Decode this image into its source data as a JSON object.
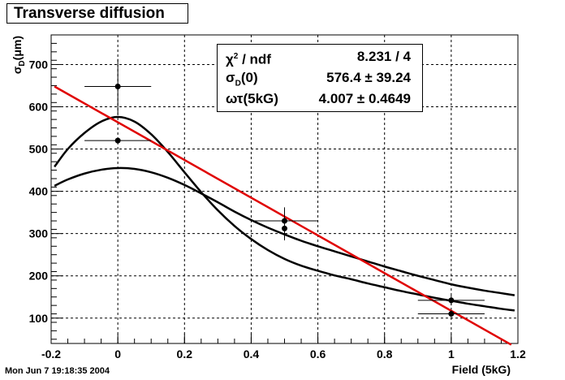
{
  "title": "Transverse diffusion",
  "footer": "Mon Jun  7 19:18:35 2004",
  "stats": {
    "rows": [
      {
        "label": "χ² / ndf",
        "value": "8.231 / 4"
      },
      {
        "label": "σD(0)",
        "value": "576.4 ± 39.24"
      },
      {
        "label": "ωτ(5kG)",
        "value": "4.007 ± 0.4649"
      }
    ]
  },
  "chart_data": {
    "type": "scatter",
    "title": "Transverse diffusion",
    "xlabel": "Field (5kG)",
    "ylabel": "σD(μm)",
    "xlim": [
      -0.2,
      1.2
    ],
    "ylim": [
      40,
      770
    ],
    "grid": true,
    "x_ticks": [
      -0.2,
      0,
      0.2,
      0.4,
      0.6,
      0.8,
      1,
      1.2
    ],
    "x_tick_labels": [
      "-0.2",
      "0",
      "0.2",
      "0.4",
      "0.6",
      "0.8",
      "1",
      "1.2"
    ],
    "y_ticks": [
      100,
      200,
      300,
      400,
      500,
      600,
      700
    ],
    "y_tick_labels": [
      "100",
      "200",
      "300",
      "400",
      "500",
      "600",
      "700"
    ],
    "points": [
      {
        "x": 0,
        "y": 648,
        "xerr": 0.1,
        "yerr": 65
      },
      {
        "x": 0,
        "y": 520,
        "xerr": 0.1,
        "yerr": 0
      },
      {
        "x": 0.5,
        "y": 330,
        "xerr": 0.1,
        "yerr": 32
      },
      {
        "x": 0.5,
        "y": 312,
        "xerr": 0,
        "yerr": 28
      },
      {
        "x": 1,
        "y": 142,
        "xerr": 0.1,
        "yerr": 12
      },
      {
        "x": 1,
        "y": 110,
        "xerr": 0.1,
        "yerr": 8
      }
    ],
    "series": [
      {
        "color": "#000000",
        "x": [
          -0.19,
          -0.15,
          -0.1,
          -0.05,
          0,
          0.05,
          0.1,
          0.15,
          0.2,
          0.25,
          0.3,
          0.35,
          0.4,
          0.45,
          0.5,
          0.55,
          0.6,
          0.65,
          0.7,
          0.75,
          0.8,
          0.85,
          0.9,
          0.95,
          1,
          1.05,
          1.1,
          1.15,
          1.19
        ],
        "y": [
          458,
          500,
          538,
          565,
          576,
          565,
          535,
          493,
          445,
          398,
          355,
          318,
          287,
          261,
          240,
          224,
          212,
          201,
          192,
          182,
          173,
          164,
          156,
          148,
          141,
          134,
          128,
          122,
          118
        ]
      },
      {
        "color": "#000000",
        "x": [
          -0.19,
          -0.15,
          -0.1,
          -0.05,
          0,
          0.05,
          0.1,
          0.15,
          0.2,
          0.25,
          0.3,
          0.35,
          0.4,
          0.45,
          0.5,
          0.55,
          0.6,
          0.65,
          0.7,
          0.75,
          0.8,
          0.85,
          0.9,
          0.95,
          1,
          1.05,
          1.1,
          1.15,
          1.19
        ],
        "y": [
          413,
          428,
          442,
          451,
          455,
          453,
          445,
          432,
          415,
          395,
          374,
          352,
          332,
          314,
          298,
          283,
          270,
          258,
          246,
          234,
          222,
          211,
          200,
          190,
          180,
          172,
          165,
          159,
          154
        ]
      },
      {
        "color": "#e00000",
        "x": [
          -0.19,
          1.18
        ],
        "y": [
          648,
          37
        ]
      }
    ]
  }
}
